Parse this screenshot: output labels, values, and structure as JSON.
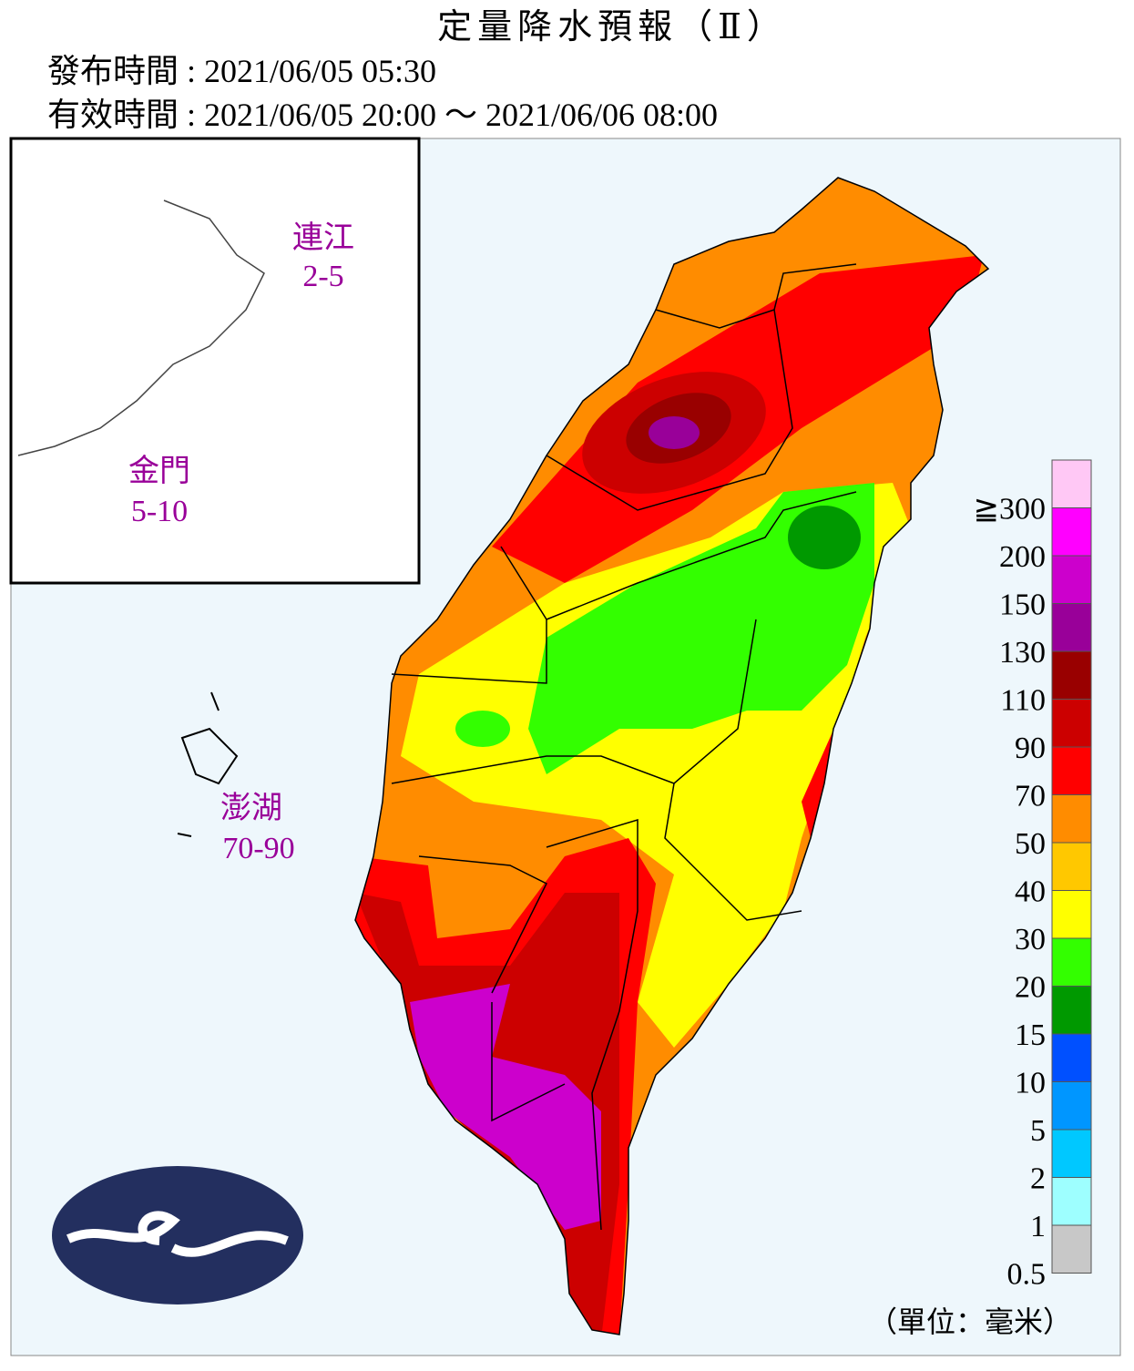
{
  "header": {
    "title": "定量降水預報（Ⅱ）",
    "issued": "發布時間 : 2021/06/05 05:30",
    "valid": "有效時間 : 2021/06/05 20:00 ～ 2021/06/06 08:00"
  },
  "islands": [
    {
      "name": "連江",
      "range": "2-5"
    },
    {
      "name": "金門",
      "range": "5-10"
    },
    {
      "name": "澎湖",
      "range": "70-90"
    }
  ],
  "legend": {
    "items": [
      {
        "label": "≧300",
        "color": "#ffc8f5"
      },
      {
        "label": "200",
        "color": "#ff00ff"
      },
      {
        "label": "150",
        "color": "#cc00cc"
      },
      {
        "label": "130",
        "color": "#990099"
      },
      {
        "label": "110",
        "color": "#990000"
      },
      {
        "label": "90",
        "color": "#cc0000"
      },
      {
        "label": "70",
        "color": "#ff0000"
      },
      {
        "label": "50",
        "color": "#ff8c00"
      },
      {
        "label": "40",
        "color": "#ffc800"
      },
      {
        "label": "30",
        "color": "#ffff00"
      },
      {
        "label": "20",
        "color": "#33ff00"
      },
      {
        "label": "15",
        "color": "#009900"
      },
      {
        "label": "10",
        "color": "#0050ff"
      },
      {
        "label": "5",
        "color": "#0096ff"
      },
      {
        "label": "2",
        "color": "#00c8ff"
      },
      {
        "label": "1",
        "color": "#9effff"
      },
      {
        "label": "0.5",
        "color": "#c8c8c8"
      }
    ],
    "unit": "（單位：毫米）"
  }
}
